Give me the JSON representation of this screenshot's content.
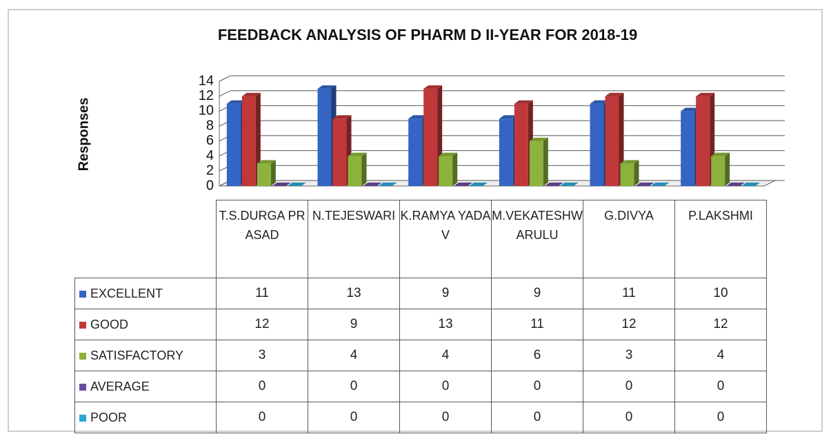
{
  "chart_data": {
    "type": "bar",
    "title": "FEEDBACK ANALYSIS OF PHARM D II-YEAR FOR 2018-19",
    "y_label": "Responses",
    "categories": [
      "T.S.DURGA PRASAD",
      "N.TEJESWARI",
      "K.RAMYA YADAV",
      "M.VEKATESHWARULU",
      "G.DIVYA",
      "P.LAKSHMI"
    ],
    "series": [
      {
        "name": "EXCELLENT",
        "color": "#3465c4",
        "values": [
          11,
          13,
          9,
          9,
          11,
          10
        ]
      },
      {
        "name": "GOOD",
        "color": "#c0383a",
        "values": [
          12,
          9,
          13,
          11,
          12,
          12
        ]
      },
      {
        "name": "SATISFACTORY",
        "color": "#8db33c",
        "values": [
          3,
          4,
          4,
          6,
          3,
          4
        ]
      },
      {
        "name": "AVERAGE",
        "color": "#6a4c9c",
        "values": [
          0,
          0,
          0,
          0,
          0,
          0
        ]
      },
      {
        "name": "POOR",
        "color": "#2aa6d8",
        "values": [
          0,
          0,
          0,
          0,
          0,
          0
        ]
      }
    ],
    "ylim": [
      0,
      14
    ],
    "yticks": [
      0,
      2,
      4,
      6,
      8,
      10,
      12,
      14
    ],
    "grid": true
  }
}
